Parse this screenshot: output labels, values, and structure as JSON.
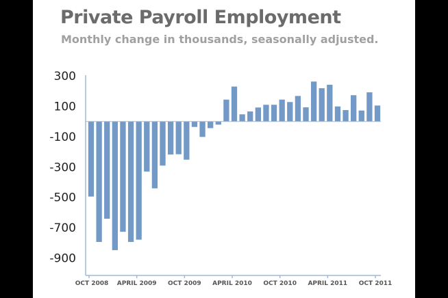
{
  "chart_data": {
    "type": "bar",
    "title": "Private Payroll Employment",
    "subtitle": "Monthly change in thousands, seasonally adjusted.",
    "xlabel": "",
    "ylabel": "",
    "ylim": [
      -1000,
      300
    ],
    "yticks": [
      300,
      100,
      -100,
      -300,
      -500,
      -700,
      -900
    ],
    "xticks": [
      {
        "label": "OCT 2008",
        "index": 0
      },
      {
        "label": "APRIL 2009",
        "index": 6
      },
      {
        "label": "OCT 2009",
        "index": 12
      },
      {
        "label": "APRIL 2010",
        "index": 18
      },
      {
        "label": "OCT 2010",
        "index": 24
      },
      {
        "label": "APRIL 2011",
        "index": 30
      },
      {
        "label": "OCT 2011",
        "index": 36
      }
    ],
    "grid": false,
    "bar_color": "#7399c6",
    "axis_color": "#9fb8d8",
    "values": [
      -495,
      -794,
      -641,
      -848,
      -727,
      -794,
      -779,
      -330,
      -441,
      -291,
      -218,
      -216,
      -252,
      -36,
      -102,
      -44,
      -21,
      144,
      230,
      47,
      66,
      92,
      110,
      110,
      144,
      128,
      168,
      93,
      263,
      219,
      242,
      99,
      75,
      173,
      72,
      192,
      105
    ]
  }
}
